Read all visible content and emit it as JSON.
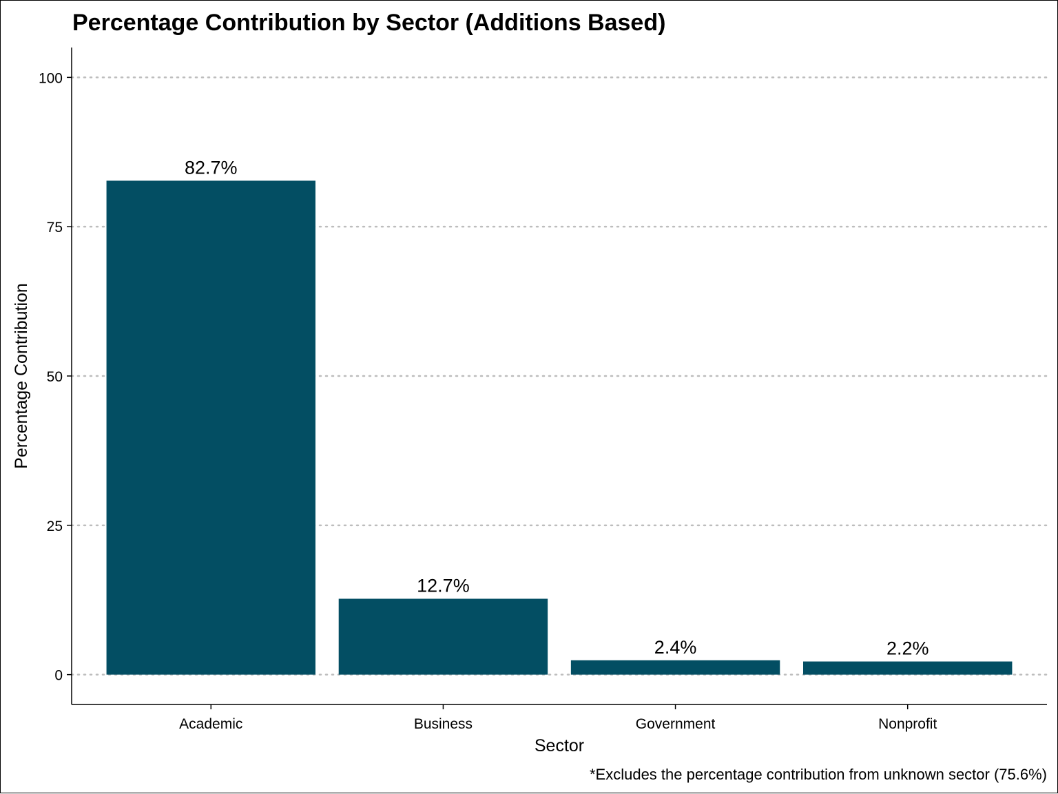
{
  "chart_data": {
    "type": "bar",
    "title": "Percentage Contribution by Sector (Additions Based)",
    "xlabel": "Sector",
    "ylabel": "Percentage Contribution",
    "caption": "*Excludes the percentage contribution from unknown sector (75.6%)",
    "categories": [
      "Academic",
      "Business",
      "Government",
      "Nonprofit"
    ],
    "values": [
      82.7,
      12.7,
      2.4,
      2.2
    ],
    "data_labels": [
      "82.7%",
      "12.7%",
      "2.4%",
      "2.2%"
    ],
    "yticks": [
      0,
      25,
      50,
      75,
      100
    ],
    "ylim": [
      -5,
      105
    ],
    "grid": "horizontal-dotted",
    "bar_color": "#034e63",
    "grid_color": "#bdbdbd"
  }
}
